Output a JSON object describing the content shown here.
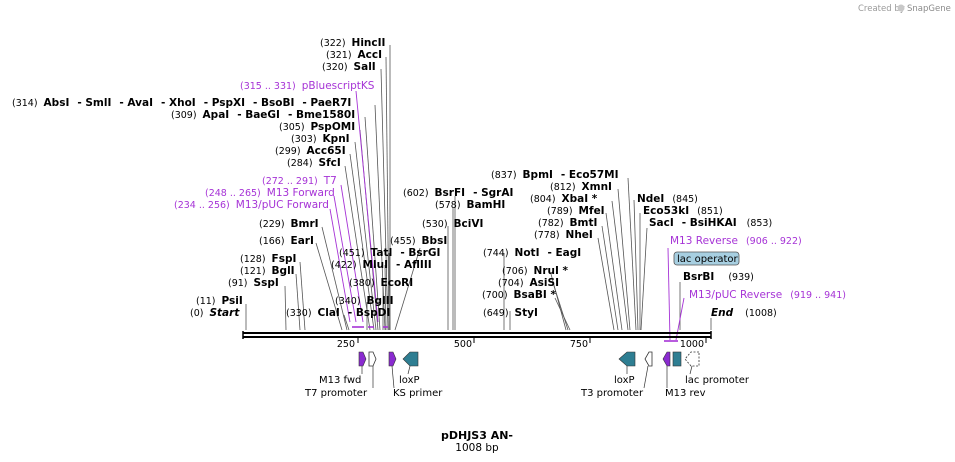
{
  "credit": {
    "prefix": "Created by",
    "brand": "SnapGene"
  },
  "plasmid": {
    "name": "pDHJS3 AN-",
    "length_label": "1008 bp",
    "length": 1008
  },
  "axis": {
    "ticks": [
      "250",
      "500",
      "750",
      "1000"
    ]
  },
  "sites": {
    "hincii": {
      "pos": "(322)",
      "name": "HincII"
    },
    "acci": {
      "pos": "(321)",
      "name": "AccI"
    },
    "sali": {
      "pos": "(320)",
      "name": "SalI"
    },
    "absi": {
      "pos": "(314)",
      "name": "AbsI"
    },
    "smli": {
      "name": "- SmlI"
    },
    "avai": {
      "name": "- AvaI"
    },
    "xhoi": {
      "name": "- XhoI"
    },
    "pspxi": {
      "name": "- PspXI"
    },
    "bsobi": {
      "name": "- BsoBI"
    },
    "paer7i": {
      "name": "- PaeR7I"
    },
    "apai": {
      "pos": "(309)",
      "name": "ApaI"
    },
    "baegi": {
      "name": "- BaeGI"
    },
    "bme1580i": {
      "name": "- Bme1580I"
    },
    "pspomi": {
      "pos": "(305)",
      "name": "PspOMI"
    },
    "kpni": {
      "pos": "(303)",
      "name": "KpnI"
    },
    "acc65i": {
      "pos": "(299)",
      "name": "Acc65I"
    },
    "sfci": {
      "pos": "(284)",
      "name": "SfcI"
    },
    "bmri": {
      "pos": "(229)",
      "name": "BmrI"
    },
    "eari": {
      "pos": "(166)",
      "name": "EarI"
    },
    "fspi": {
      "pos": "(128)",
      "name": "FspI"
    },
    "bgli": {
      "pos": "(121)",
      "name": "BglI"
    },
    "sspi": {
      "pos": "(91)",
      "name": "SspI"
    },
    "psii": {
      "pos": "(11)",
      "name": "PsiI"
    },
    "start": {
      "pos": "(0)",
      "name": "Start"
    },
    "clai": {
      "pos": "(330)",
      "name": "ClaI"
    },
    "bspdi": {
      "name": "- BspDI"
    },
    "tati": {
      "pos": "(451)",
      "name": "TatI"
    },
    "bsrgi": {
      "name": "- BsrGI"
    },
    "bbsi": {
      "pos": "(455)",
      "name": "BbsI"
    },
    "mlui": {
      "pos": "(422)",
      "name": "MluI"
    },
    "afliii": {
      "name": "- AflIII"
    },
    "ecori": {
      "pos": "(380)",
      "name": "EcoRI"
    },
    "bglii": {
      "pos": "(340)",
      "name": "BglII"
    },
    "bsrfi": {
      "pos": "(602)",
      "name": "BsrFI"
    },
    "sgrai": {
      "name": "- SgrAI"
    },
    "bamhi": {
      "pos": "(578)",
      "name": "BamHI"
    },
    "bcivi": {
      "pos": "(530)",
      "name": "BciVI"
    },
    "noti": {
      "pos": "(744)",
      "name": "NotI"
    },
    "eagi": {
      "name": "- EagI"
    },
    "nrui": {
      "pos": "(706)",
      "name": "NruI *"
    },
    "asisi": {
      "pos": "(704)",
      "name": "AsiSI"
    },
    "bsabi": {
      "pos": "(700)",
      "name": "BsaBI *"
    },
    "styi": {
      "pos": "(649)",
      "name": "StyI"
    },
    "bpmi": {
      "pos": "(837)",
      "name": "BpmI"
    },
    "eco57mi": {
      "name": "- Eco57MI"
    },
    "xmni": {
      "pos": "(812)",
      "name": "XmnI"
    },
    "xbai": {
      "pos": "(804)",
      "name": "XbaI *"
    },
    "mfei": {
      "pos": "(789)",
      "name": "MfeI"
    },
    "bmti": {
      "pos": "(782)",
      "name": "BmtI"
    },
    "nhei": {
      "pos": "(778)",
      "name": "NheI"
    },
    "ndei": {
      "name": "NdeI",
      "pos": "(845)"
    },
    "eco53ki": {
      "name": "Eco53kI",
      "pos": "(851)"
    },
    "saci": {
      "name": "SacI"
    },
    "bsihkai": {
      "name": "- BsiHKAI",
      "pos": "(853)"
    },
    "bsrbi": {
      "name": "BsrBI",
      "pos": "(939)"
    },
    "end": {
      "name": "End",
      "pos": "(1008)"
    }
  },
  "primers": {
    "pbluescriptks": {
      "range": "(315 .. 331)",
      "name": "pBluescriptKS"
    },
    "t7": {
      "range": "(272 .. 291)",
      "name": "T7"
    },
    "m13fwd": {
      "range": "(248 .. 265)",
      "name": "M13 Forward"
    },
    "m13puc_fwd": {
      "range": "(234 .. 256)",
      "name": "M13/pUC Forward"
    },
    "m13rev": {
      "name": "M13 Reverse",
      "range": "(906 .. 922)"
    },
    "m13puc_rev": {
      "name": "M13/pUC Reverse",
      "range": "(919 .. 941)"
    }
  },
  "features": {
    "lac_operator": "lac operator",
    "m13_fwd": "M13 fwd",
    "t7_promoter": "T7 promoter",
    "loxp_left": "loxP",
    "ks_primer": "KS primer",
    "loxp_right": "loxP",
    "t3_promoter": "T3 promoter",
    "m13_rev": "M13 rev",
    "lac_promoter": "lac promoter"
  },
  "colors": {
    "primer": "#a633d6",
    "loxp": "#2e7e92",
    "m13": "#8a2bd0",
    "lac_operator": "#a7cfe1",
    "axis": "#000000",
    "line": "#444444"
  }
}
